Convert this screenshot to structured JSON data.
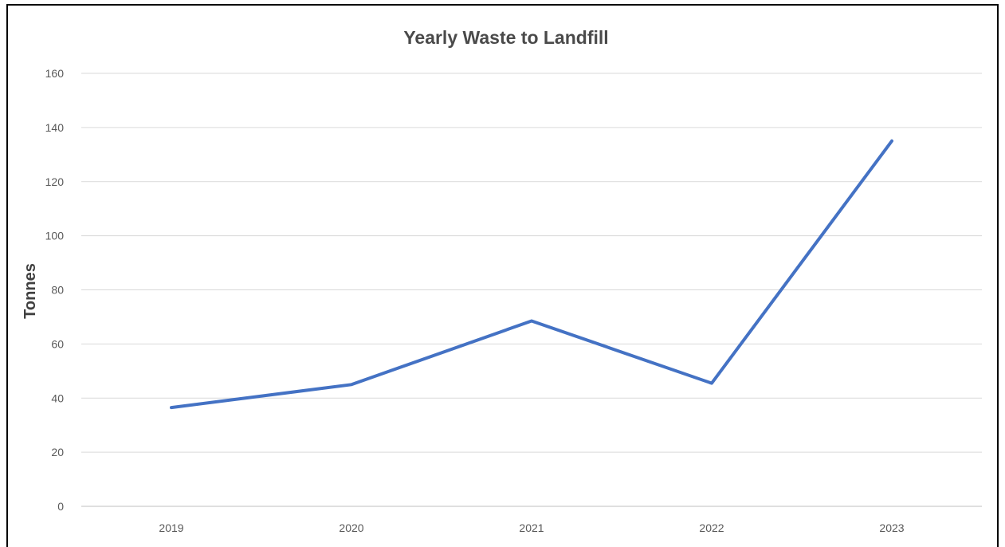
{
  "chart_data": {
    "type": "line",
    "title": "Yearly Waste to Landfill",
    "xlabel": "",
    "ylabel": "Tonnes",
    "categories": [
      "2019",
      "2020",
      "2021",
      "2022",
      "2023"
    ],
    "series": [
      {
        "values": [
          36.5,
          45,
          68.5,
          45.5,
          135
        ],
        "color": "#4472c4"
      }
    ],
    "ylim": [
      0,
      160
    ],
    "yticks": [
      0,
      20,
      40,
      60,
      80,
      100,
      120,
      140,
      160
    ],
    "grid": true,
    "legend": "none"
  }
}
